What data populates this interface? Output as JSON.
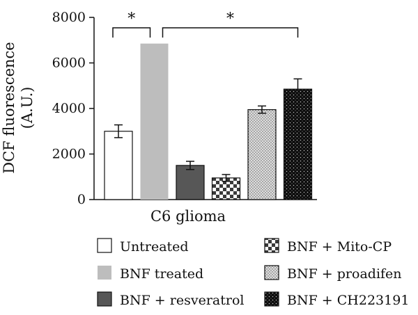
{
  "chart_data": {
    "type": "bar",
    "ylabel_line1": "DCF fluorescence",
    "ylabel_line2": "(A.U.)",
    "xlabel": "C6 glioma",
    "ylim": [
      0,
      8000
    ],
    "yticks": [
      0,
      2000,
      4000,
      6000,
      8000
    ],
    "grid": false,
    "legend_placement": "bottom",
    "series": [
      {
        "name": "Untreated",
        "value": 3000,
        "error": 280,
        "fill": "white"
      },
      {
        "name": "BNF treated",
        "value": 6850,
        "error": 0,
        "fill": "lightgray"
      },
      {
        "name": "BNF + resveratrol",
        "value": 1500,
        "error": 180,
        "fill": "darkgray"
      },
      {
        "name": "BNF + Mito-CP",
        "value": 950,
        "error": 150,
        "fill": "checker"
      },
      {
        "name": "BNF + proadifen",
        "value": 3950,
        "error": 160,
        "fill": "dots"
      },
      {
        "name": "BNF + CH223191",
        "value": 4850,
        "error": 450,
        "fill": "blackdots"
      }
    ],
    "significance": [
      {
        "label": "*",
        "from": 0,
        "to": 1
      },
      {
        "label": "*",
        "from": 1,
        "to": 5
      }
    ]
  }
}
